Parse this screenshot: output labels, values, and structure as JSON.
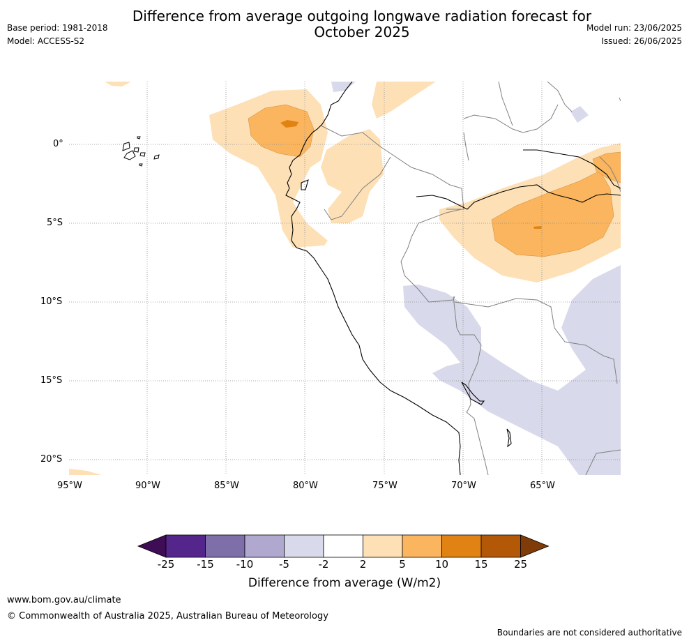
{
  "header": {
    "base_period": "Base period: 1981-2018",
    "model": "Model: ACCESS-S2",
    "title_line1": "Difference from average outgoing longwave radiation forecast for",
    "title_line2": "October 2025",
    "model_run": "Model run: 23/06/2025",
    "issued": "Issued: 26/06/2025"
  },
  "map": {
    "lat_labels": [
      "0°",
      "5°S",
      "10°S",
      "15°S",
      "20°S"
    ],
    "lon_labels": [
      "95°W",
      "90°W",
      "85°W",
      "80°W",
      "75°W",
      "70°W",
      "65°W"
    ],
    "coastline_color": "#000000",
    "border_color": "#808080"
  },
  "colorbar": {
    "ticks": [
      "-25",
      "-15",
      "-10",
      "-5",
      "-2",
      "2",
      "5",
      "10",
      "15",
      "25"
    ],
    "colors": [
      "#3f0d55",
      "#54258a",
      "#7f6fa9",
      "#b0a8cf",
      "#d8d9ea",
      "#ffffff",
      "#fde0b6",
      "#fab55e",
      "#e08214",
      "#b35806",
      "#7f3b08"
    ],
    "label": "Difference from average (W/m2)"
  },
  "footer": {
    "url": "www.bom.gov.au/climate",
    "copyright": "© Commonwealth of Australia 2025, Australian Bureau of Meteorology",
    "disclaimer": "Boundaries are not considered authoritative"
  }
}
